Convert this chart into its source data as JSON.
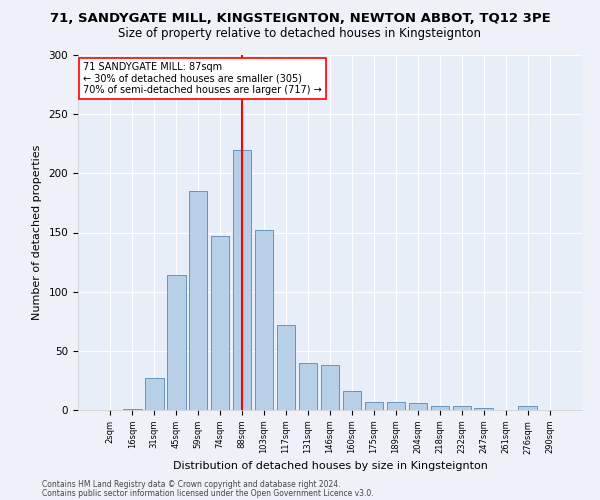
{
  "title1": "71, SANDYGATE MILL, KINGSTEIGNTON, NEWTON ABBOT, TQ12 3PE",
  "title2": "Size of property relative to detached houses in Kingsteignton",
  "xlabel": "Distribution of detached houses by size in Kingsteignton",
  "ylabel": "Number of detached properties",
  "footnote1": "Contains HM Land Registry data © Crown copyright and database right 2024.",
  "footnote2": "Contains public sector information licensed under the Open Government Licence v3.0.",
  "categories": [
    "2sqm",
    "16sqm",
    "31sqm",
    "45sqm",
    "59sqm",
    "74sqm",
    "88sqm",
    "103sqm",
    "117sqm",
    "131sqm",
    "146sqm",
    "160sqm",
    "175sqm",
    "189sqm",
    "204sqm",
    "218sqm",
    "232sqm",
    "247sqm",
    "261sqm",
    "276sqm",
    "290sqm"
  ],
  "values": [
    0,
    1,
    27,
    114,
    185,
    147,
    220,
    152,
    72,
    40,
    38,
    16,
    7,
    7,
    6,
    3,
    3,
    2,
    0,
    3,
    0
  ],
  "bar_color": "#b8cfe8",
  "bar_edge_color": "#5588bb",
  "vline_x": 6,
  "vline_color": "red",
  "annotation_text": "71 SANDYGATE MILL: 87sqm\n← 30% of detached houses are smaller (305)\n70% of semi-detached houses are larger (717) →",
  "annotation_box_color": "white",
  "annotation_box_edge_color": "red",
  "ylim": [
    0,
    300
  ],
  "yticks": [
    0,
    50,
    100,
    150,
    200,
    250,
    300
  ],
  "bg_color": "#eef2f8",
  "plot_bg_color": "#e8eef8",
  "grid_color": "white",
  "title1_fontsize": 9.5,
  "title2_fontsize": 8.5,
  "xlabel_fontsize": 8,
  "ylabel_fontsize": 8,
  "footnote_fontsize": 5.5
}
